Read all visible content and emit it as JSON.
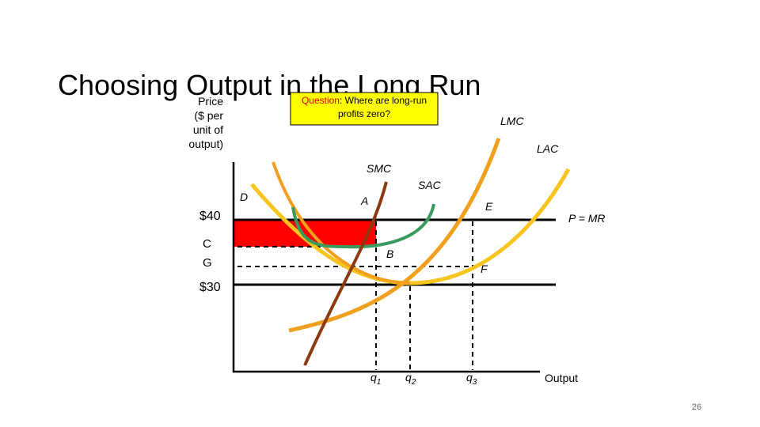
{
  "title": "Choosing Output in the Long Run",
  "callout": {
    "lead": "Question",
    "text": ": Where are long-run",
    "text2": "profits zero?"
  },
  "axis": {
    "y_label": [
      "Price",
      "($ per",
      "unit of",
      "output)"
    ],
    "x_label": "Output"
  },
  "price_labels": {
    "p40": "$40",
    "c": "C",
    "g": "G",
    "p30": "$30"
  },
  "curve_labels": {
    "lmc": "LMC",
    "lac": "LAC",
    "smc": "SMC",
    "sac": "SAC",
    "d": "D",
    "a": "A",
    "e": "E",
    "p_mr": "P = MR",
    "b": "B",
    "f": "F"
  },
  "quantity_labels": [
    {
      "base": "q",
      "sub": "1"
    },
    {
      "base": "q",
      "sub": "2"
    },
    {
      "base": "q",
      "sub": "3"
    }
  ],
  "page_number": "26"
}
